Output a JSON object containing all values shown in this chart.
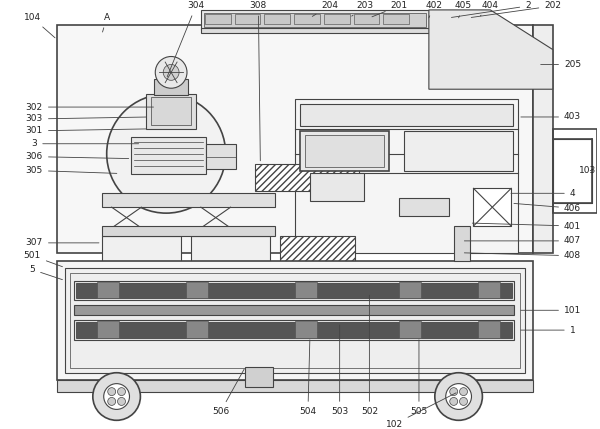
{
  "bg_color": "#ffffff",
  "lc": "#444444",
  "lw": 0.8,
  "lw2": 1.2,
  "fs": 6.5,
  "fig_w": 6.0,
  "fig_h": 4.29,
  "dpi": 100
}
